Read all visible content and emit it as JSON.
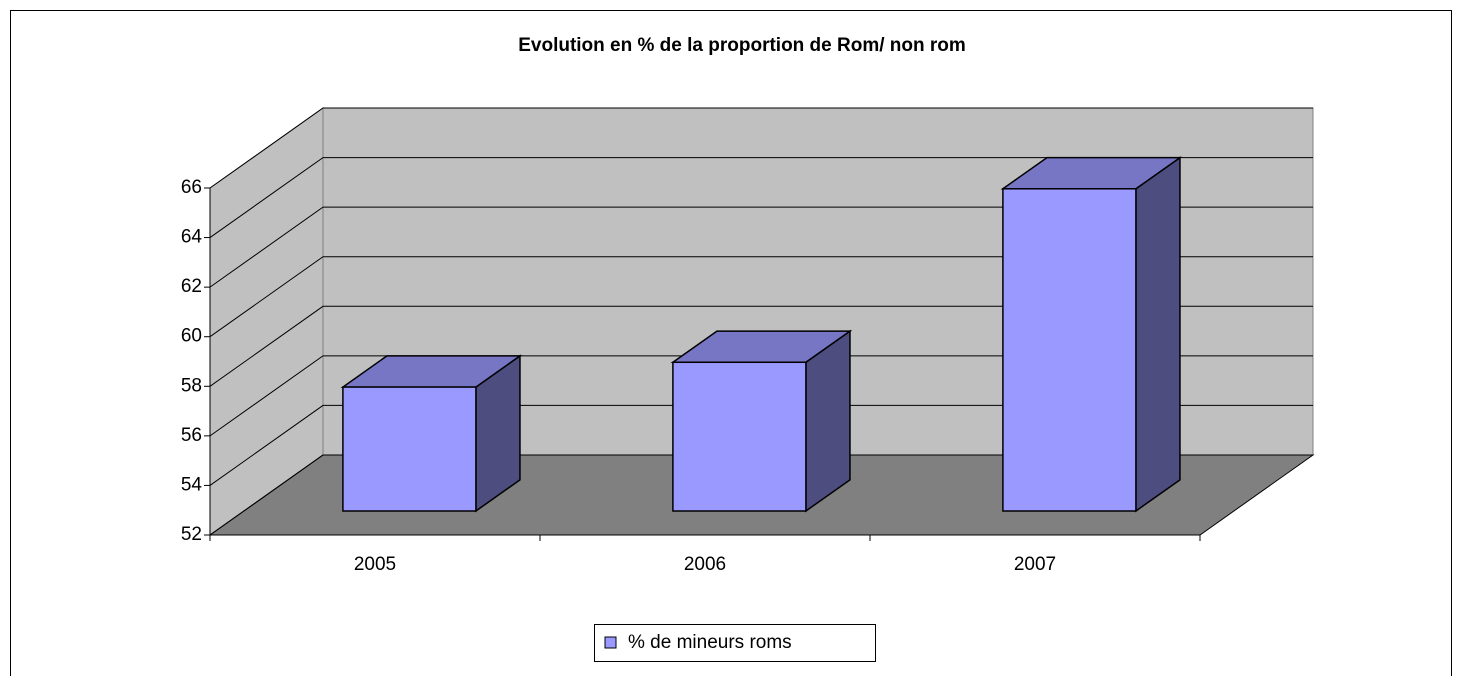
{
  "chart_data": {
    "type": "bar",
    "title": "Evolution en % de la proportion de  Rom/ non rom",
    "categories": [
      "2005",
      "2006",
      "2007"
    ],
    "series": [
      {
        "name": "% de mineurs roms",
        "color": "#9999ff",
        "values": [
          57,
          58,
          65
        ]
      }
    ],
    "ylim": [
      52,
      66
    ],
    "yticks": [
      52,
      54,
      56,
      58,
      60,
      62,
      64,
      66
    ],
    "grid": true,
    "legend": "bottom"
  }
}
